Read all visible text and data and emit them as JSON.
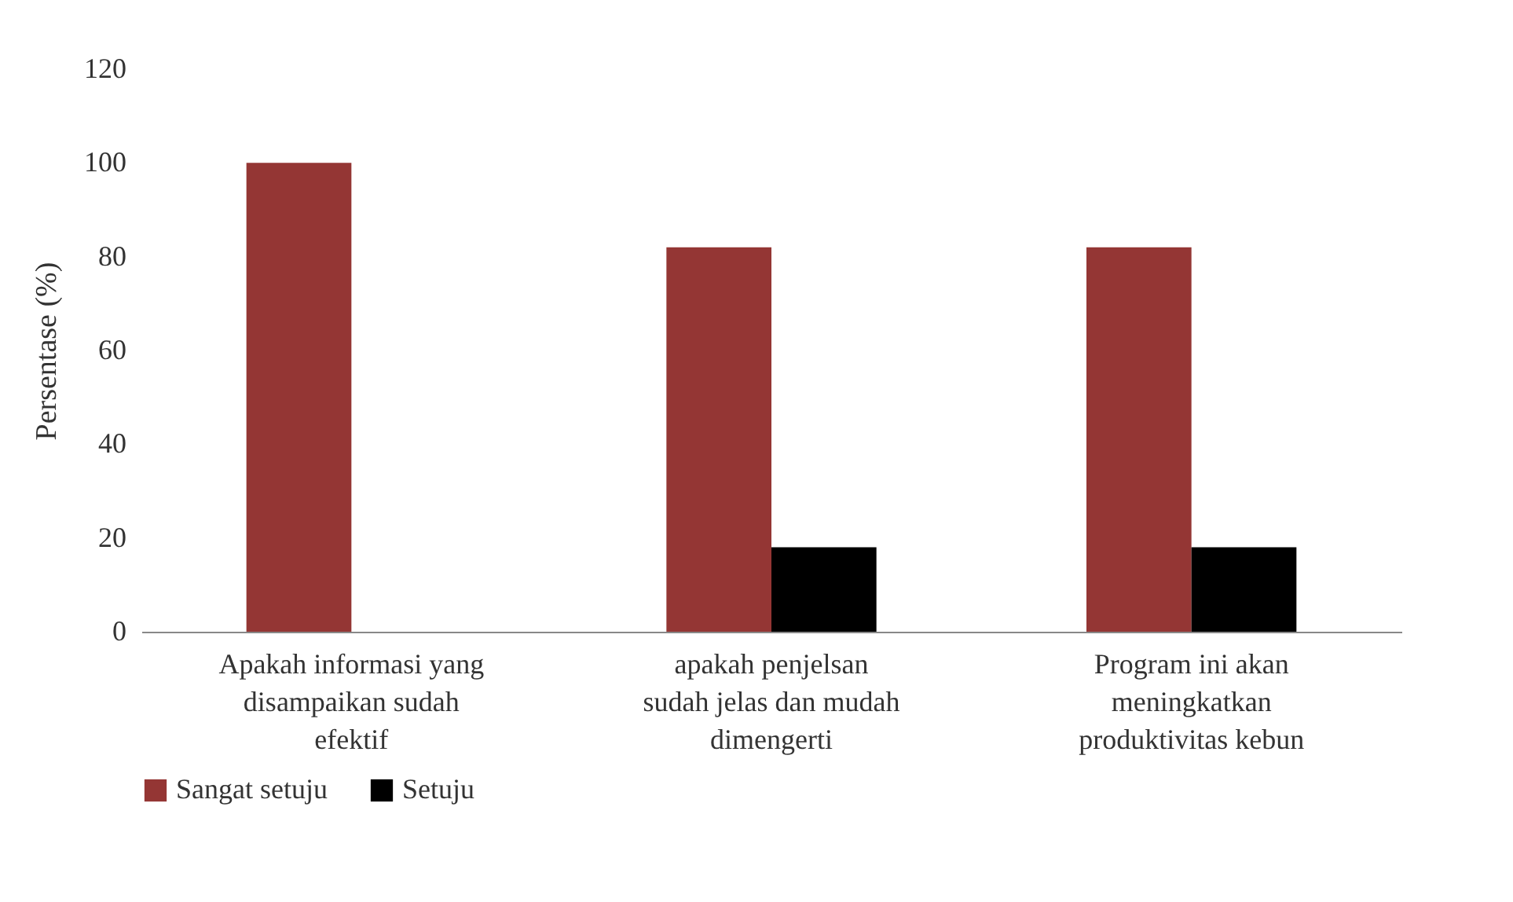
{
  "chart_data": {
    "type": "bar",
    "ylabel": "Persentase (%)",
    "categories": [
      "Apakah informasi yang disampaikan sudah efektif",
      "apakah penjelsan sudah jelas dan mudah dimengerti",
      "Program ini akan meningkatkan produktivitas kebun"
    ],
    "series": [
      {
        "name": "Sangat setuju",
        "color": "#943634",
        "values": [
          100,
          82,
          82
        ]
      },
      {
        "name": "Setuju",
        "color": "#000000",
        "values": [
          0,
          18,
          18
        ]
      }
    ],
    "ylim": [
      0,
      120
    ],
    "yticks": [
      0,
      20,
      40,
      60,
      80,
      100,
      120
    ],
    "grid": false,
    "legend": "bottom"
  }
}
